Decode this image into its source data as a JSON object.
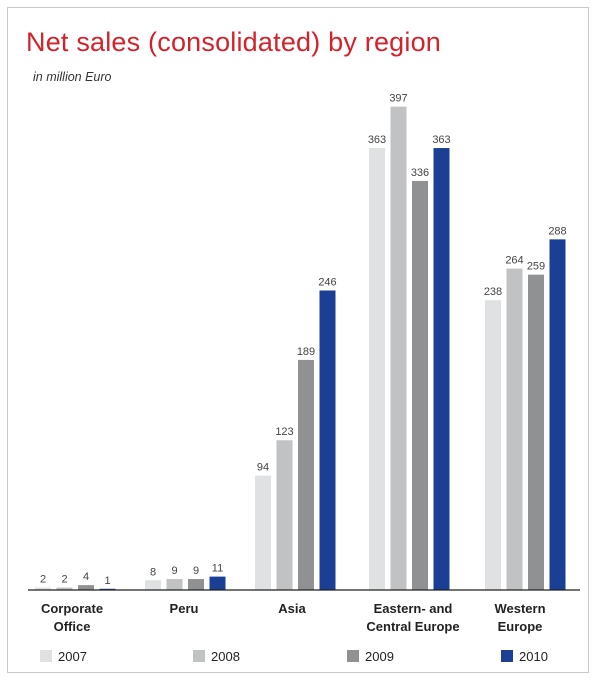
{
  "chart_data": {
    "type": "bar",
    "title": "Net sales (consolidated) by region",
    "subtitle": "in million Euro",
    "categories": [
      [
        "Corporate",
        "Office"
      ],
      [
        "Peru"
      ],
      [
        "Asia"
      ],
      [
        "Eastern- and",
        "Central Europe"
      ],
      [
        "Western",
        "Europe"
      ]
    ],
    "series": [
      {
        "name": "2007",
        "color": "#e0e1e3",
        "values": [
          2,
          8,
          94,
          363,
          238
        ]
      },
      {
        "name": "2008",
        "color": "#c1c2c4",
        "values": [
          2,
          9,
          123,
          397,
          264
        ]
      },
      {
        "name": "2009",
        "color": "#8f9193",
        "values": [
          4,
          9,
          189,
          336,
          259
        ]
      },
      {
        "name": "2010",
        "color": "#1a3f94",
        "values": [
          1,
          11,
          246,
          363,
          288
        ]
      }
    ],
    "ylim": [
      0,
      400
    ],
    "grid": false,
    "legend_position": "bottom"
  }
}
